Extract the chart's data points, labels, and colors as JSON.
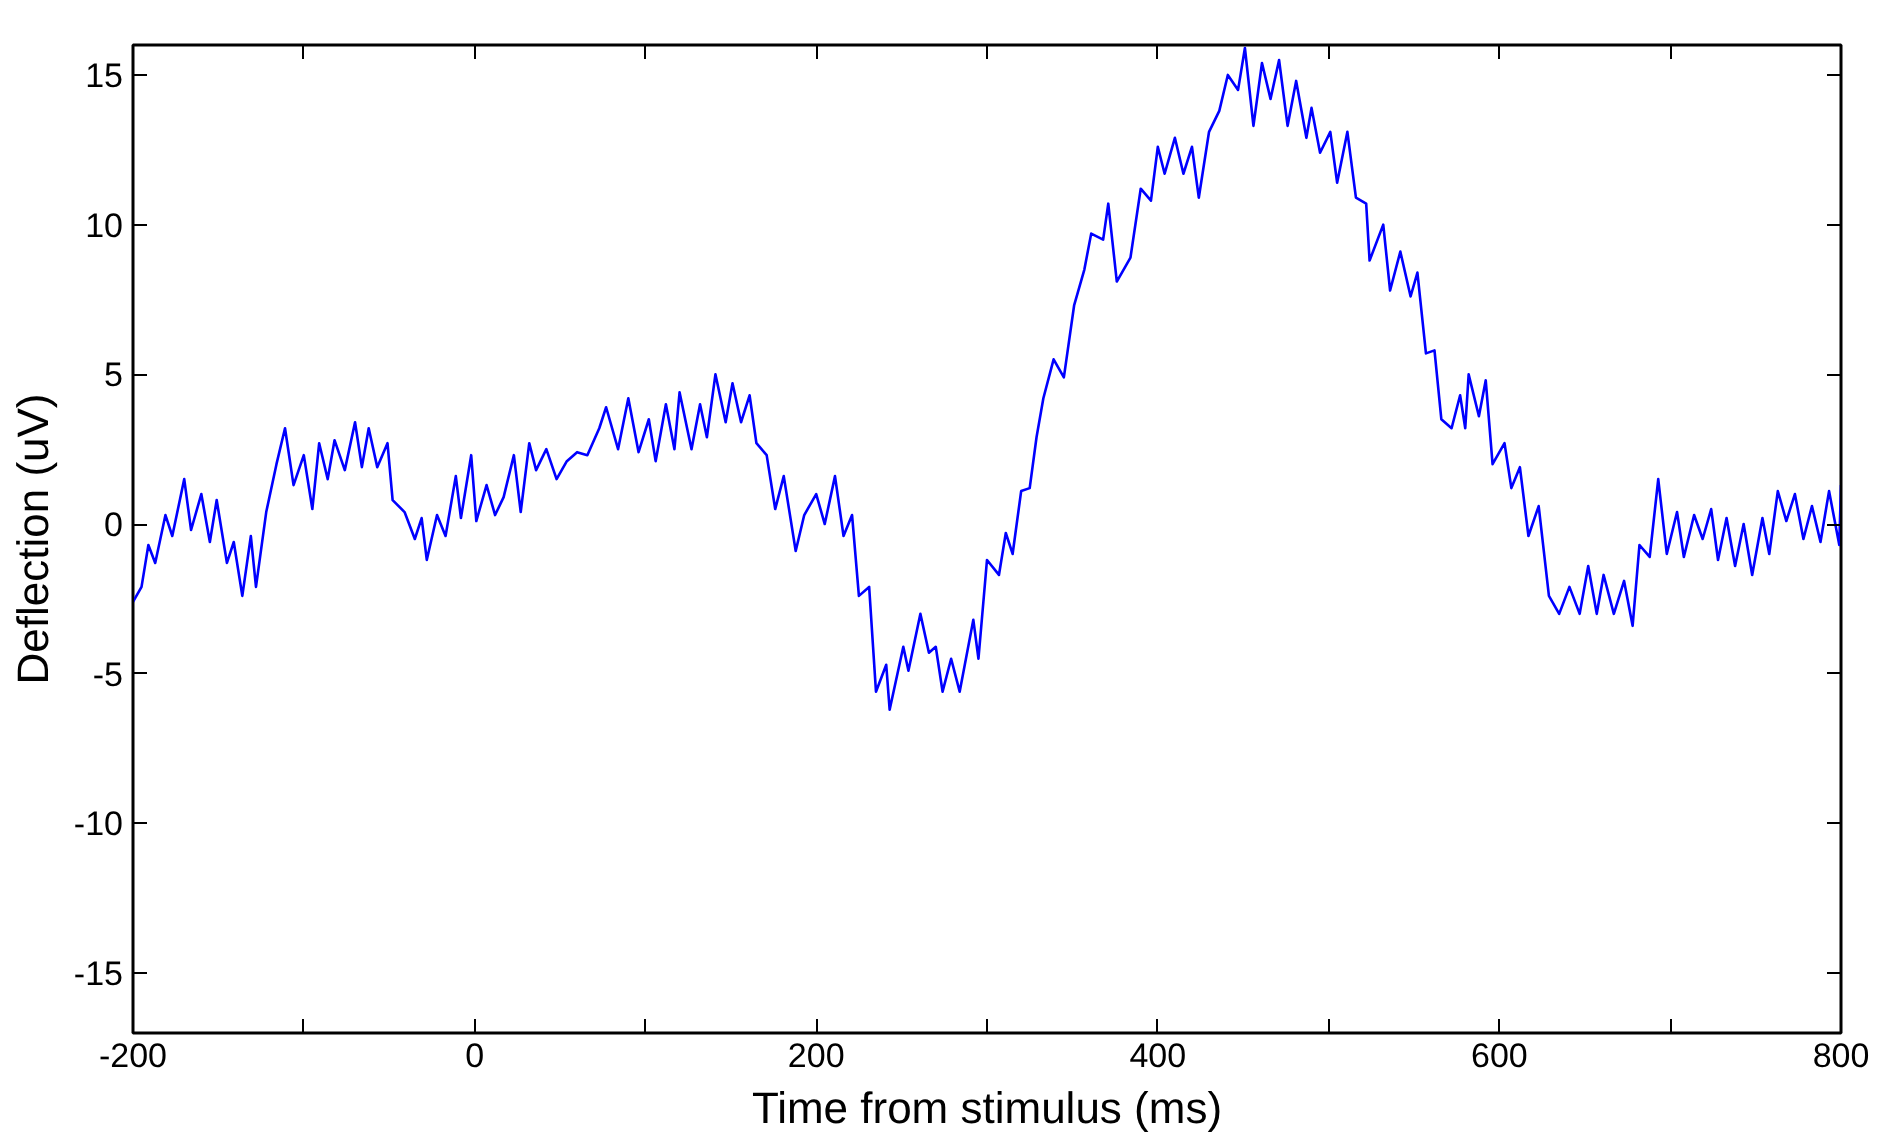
{
  "chart_data": {
    "type": "line",
    "xlabel": "Time from stimulus (ms)",
    "ylabel": "Deflection (uV)",
    "xlim": [
      -200,
      800
    ],
    "ylim": [
      -17,
      16
    ],
    "xticks": [
      -200,
      {
        "value": -100,
        "label": null
      },
      0,
      {
        "value": 100,
        "label": null
      },
      200,
      {
        "value": 300,
        "label": null
      },
      400,
      {
        "value": 500,
        "label": null
      },
      600,
      {
        "value": 700,
        "label": null
      },
      800
    ],
    "yticks": [
      -15,
      -10,
      -5,
      0,
      5,
      10,
      15
    ],
    "grid": false,
    "marker": "none",
    "line_style": "solid",
    "series": [
      {
        "color": "#0000ff",
        "x": [
          -200,
          -195,
          -191,
          -187,
          -181,
          -177,
          -170,
          -166,
          -160,
          -155,
          -151,
          -145,
          -141,
          -136,
          -131,
          -128,
          -122,
          -116,
          -111,
          -106,
          -100,
          -95,
          -91,
          -86,
          -82,
          -76,
          -70,
          -66,
          -62,
          -57,
          -51,
          -48,
          -41,
          -35,
          -31,
          -28,
          -22,
          -17,
          -11,
          -8,
          -2,
          1,
          7,
          12,
          17,
          23,
          27,
          32,
          36,
          42,
          48,
          54,
          60,
          66,
          73,
          77,
          84,
          90,
          96,
          102,
          106,
          112,
          117,
          120,
          127,
          132,
          136,
          141,
          147,
          151,
          156,
          161,
          165,
          171,
          176,
          181,
          188,
          193,
          200,
          205,
          211,
          216,
          221,
          225,
          231,
          235,
          241,
          243,
          251,
          254,
          261,
          266,
          270,
          274,
          279,
          284,
          292,
          295,
          300,
          307,
          311,
          315,
          320,
          325,
          329,
          333,
          339,
          345,
          351,
          357,
          361,
          368,
          371,
          376,
          384,
          390,
          396,
          400,
          404,
          410,
          415,
          420,
          424,
          430,
          436,
          441,
          447,
          451,
          456,
          461,
          466,
          471,
          476,
          481,
          487,
          490,
          495,
          501,
          505,
          511,
          516,
          522,
          524,
          532,
          536,
          542,
          548,
          552,
          557,
          562,
          566,
          572,
          577,
          580,
          582,
          588,
          592,
          596,
          603,
          607,
          612,
          617,
          623,
          629,
          635,
          641,
          647,
          652,
          657,
          661,
          667,
          673,
          678,
          682,
          688,
          693,
          698,
          704,
          708,
          714,
          719,
          724,
          728,
          733,
          738,
          743,
          748,
          754,
          758,
          763,
          768,
          773,
          778,
          783,
          788,
          793,
          799,
          800
        ],
        "values": [
          -2.6,
          -2.1,
          -0.7,
          -1.3,
          0.3,
          -0.4,
          1.5,
          -0.2,
          1.0,
          -0.6,
          0.8,
          -1.3,
          -0.6,
          -2.4,
          -0.4,
          -2.1,
          0.4,
          2.0,
          3.2,
          1.3,
          2.3,
          0.5,
          2.7,
          1.5,
          2.8,
          1.8,
          3.4,
          1.9,
          3.2,
          1.9,
          2.7,
          0.8,
          0.4,
          -0.5,
          0.2,
          -1.2,
          0.3,
          -0.4,
          1.6,
          0.2,
          2.3,
          0.1,
          1.3,
          0.3,
          0.9,
          2.3,
          0.4,
          2.7,
          1.8,
          2.5,
          1.5,
          2.1,
          2.4,
          2.3,
          3.2,
          3.9,
          2.5,
          4.2,
          2.4,
          3.5,
          2.1,
          4.0,
          2.5,
          4.4,
          2.5,
          4.0,
          2.9,
          5.0,
          3.4,
          4.7,
          3.4,
          4.3,
          2.7,
          2.3,
          0.5,
          1.6,
          -0.9,
          0.3,
          1.0,
          0.0,
          1.6,
          -0.4,
          0.3,
          -2.4,
          -2.1,
          -5.6,
          -4.7,
          -6.2,
          -4.1,
          -4.9,
          -3.0,
          -4.3,
          -4.1,
          -5.6,
          -4.5,
          -5.6,
          -3.2,
          -4.5,
          -1.2,
          -1.7,
          -0.3,
          -1.0,
          1.1,
          1.2,
          2.9,
          4.2,
          5.5,
          4.9,
          7.3,
          8.5,
          9.7,
          9.5,
          10.7,
          8.1,
          8.9,
          11.2,
          10.8,
          12.6,
          11.7,
          12.9,
          11.7,
          12.6,
          10.9,
          13.1,
          13.8,
          15.0,
          14.5,
          15.9,
          13.3,
          15.4,
          14.2,
          15.5,
          13.3,
          14.8,
          12.9,
          13.9,
          12.4,
          13.1,
          11.4,
          13.1,
          10.9,
          10.7,
          8.8,
          10.0,
          7.8,
          9.1,
          7.6,
          8.4,
          5.7,
          5.8,
          3.5,
          3.2,
          4.3,
          3.2,
          5.0,
          3.6,
          4.8,
          2.0,
          2.7,
          1.2,
          1.9,
          -0.4,
          0.6,
          -2.4,
          -3.0,
          -2.1,
          -3.0,
          -1.4,
          -3.0,
          -1.7,
          -3.0,
          -1.9,
          -3.4,
          -0.7,
          -1.1,
          1.5,
          -1.0,
          0.4,
          -1.1,
          0.3,
          -0.5,
          0.5,
          -1.2,
          0.2,
          -1.4,
          0.0,
          -1.7,
          0.2,
          -1.0,
          1.1,
          0.1,
          1.0,
          -0.5,
          0.6,
          -0.6,
          1.1,
          -0.7,
          1.3
        ]
      }
    ]
  }
}
